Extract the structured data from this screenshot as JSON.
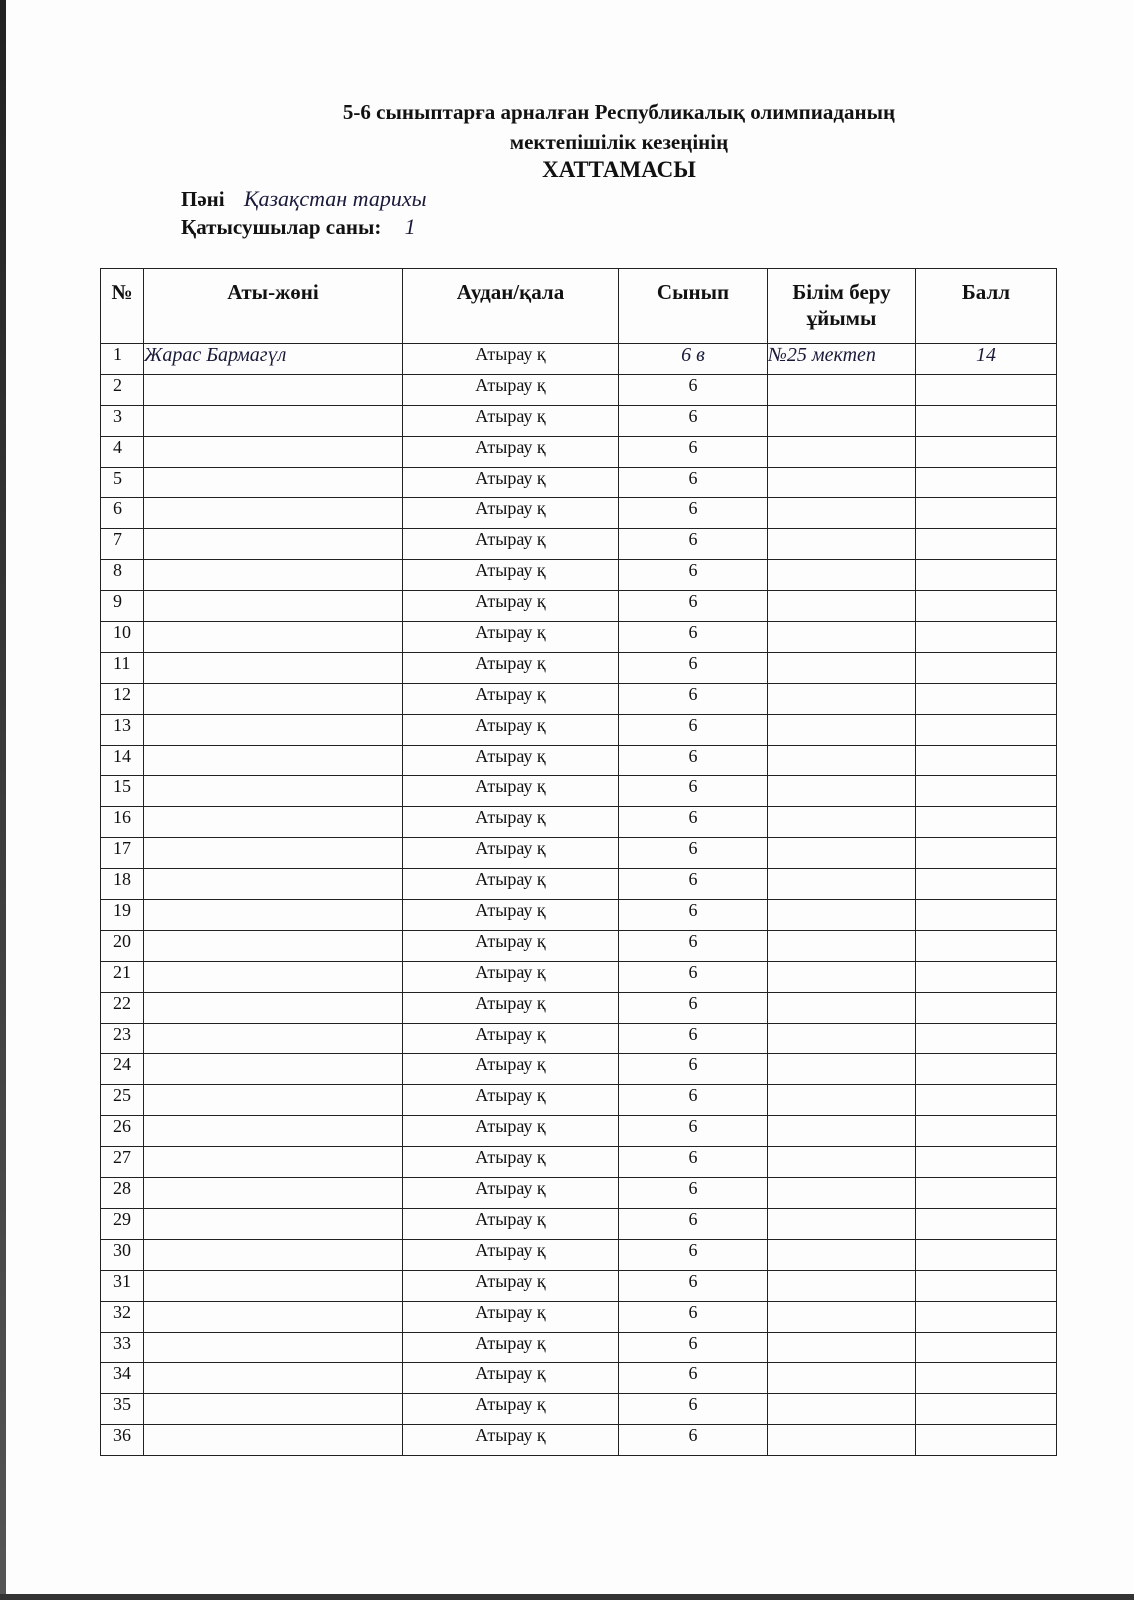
{
  "header": {
    "line1": "5-6 сыныптарға арналған Республикалық олимпиаданың",
    "line2": "мектепішілік кезеңінің",
    "line3": "ХАТТАМАСЫ",
    "subject_label": "Пәні",
    "subject_value": "Қазақстан тарихы",
    "participants_label": "Қатысушылар саны:",
    "participants_value": "1"
  },
  "table": {
    "columns": [
      "№",
      "Аты-жөні",
      "Аудан/қала",
      "Сынып",
      "Білім беру ұйымы",
      "Балл"
    ],
    "first_row": {
      "name": "Жарас Бармагүл",
      "class": "6 в",
      "org": "№25 мектеп",
      "score": "14"
    },
    "district": "Атырау қ",
    "class_default": "6",
    "row_count": 36
  }
}
